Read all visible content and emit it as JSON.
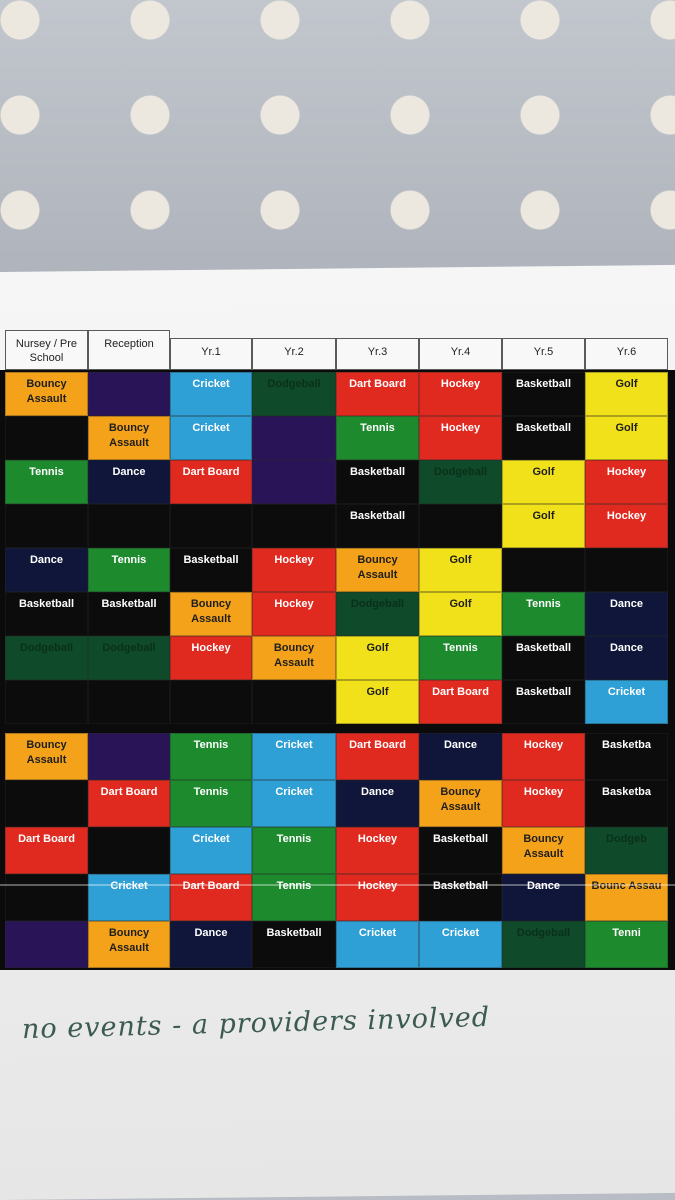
{
  "colors": {
    "orange": "#f4a21a",
    "purple": "#2a1458",
    "blue": "#2fa0d6",
    "darkgreen": "#0f4a2a",
    "red": "#e02a20",
    "black": "#0c0c0c",
    "yellow": "#f1e11a",
    "green": "#1e8a2e",
    "navy": "#10163a"
  },
  "headers": [
    "Nursey / Pre School",
    "Reception",
    "Yr.1",
    "Yr.2",
    "Yr.3",
    "Yr.4",
    "Yr.5",
    "Yr.6"
  ],
  "block1": [
    [
      [
        "Bouncy Assault",
        "orange"
      ],
      [
        "",
        "purple"
      ],
      [
        "Cricket",
        "blue"
      ],
      [
        "Dodgeball",
        "darkgreen"
      ],
      [
        "Dart Board",
        "red"
      ],
      [
        "Hockey",
        "red"
      ],
      [
        "Basketball",
        "black"
      ],
      [
        "Golf",
        "yellow"
      ]
    ],
    [
      [
        "",
        "black"
      ],
      [
        "Bouncy Assault",
        "orange"
      ],
      [
        "Cricket",
        "blue"
      ],
      [
        "",
        "purple"
      ],
      [
        "Tennis",
        "green"
      ],
      [
        "Hockey",
        "red"
      ],
      [
        "Basketball",
        "black"
      ],
      [
        "Golf",
        "yellow"
      ]
    ],
    [
      [
        "Tennis",
        "green"
      ],
      [
        "Dance",
        "navy"
      ],
      [
        "Dart Board",
        "red"
      ],
      [
        "",
        "purple"
      ],
      [
        "Basketball",
        "black"
      ],
      [
        "Dodgeball",
        "darkgreen"
      ],
      [
        "Golf",
        "yellow"
      ],
      [
        "Hockey",
        "red"
      ]
    ],
    [
      [
        "",
        "black"
      ],
      [
        "",
        "black"
      ],
      [
        "",
        "black"
      ],
      [
        "",
        "black"
      ],
      [
        "Basketball",
        "black"
      ],
      [
        "",
        "black"
      ],
      [
        "Golf",
        "yellow"
      ],
      [
        "Hockey",
        "red"
      ]
    ],
    [
      [
        "Dance",
        "navy"
      ],
      [
        "Tennis",
        "green"
      ],
      [
        "Basketball",
        "black"
      ],
      [
        "Hockey",
        "red"
      ],
      [
        "Bouncy Assault",
        "orange"
      ],
      [
        "Golf",
        "yellow"
      ],
      [
        "",
        "black"
      ],
      [
        "",
        "black"
      ]
    ],
    [
      [
        "Basketball",
        "black"
      ],
      [
        "Basketball",
        "black"
      ],
      [
        "Bouncy Assault",
        "orange"
      ],
      [
        "Hockey",
        "red"
      ],
      [
        "Dodgeball",
        "darkgreen"
      ],
      [
        "Golf",
        "yellow"
      ],
      [
        "Tennis",
        "green"
      ],
      [
        "Dance",
        "navy"
      ]
    ],
    [
      [
        "Dodgeball",
        "darkgreen"
      ],
      [
        "Dodgeball",
        "darkgreen"
      ],
      [
        "Hockey",
        "red"
      ],
      [
        "Bouncy Assault",
        "orange"
      ],
      [
        "Golf",
        "yellow"
      ],
      [
        "Tennis",
        "green"
      ],
      [
        "Basketball",
        "black"
      ],
      [
        "Dance",
        "navy"
      ]
    ],
    [
      [
        "",
        "black"
      ],
      [
        "",
        "black"
      ],
      [
        "",
        "black"
      ],
      [
        "",
        "black"
      ],
      [
        "Golf",
        "yellow"
      ],
      [
        "Dart Board",
        "red"
      ],
      [
        "Basketball",
        "black"
      ],
      [
        "Cricket",
        "blue"
      ]
    ]
  ],
  "block2": [
    [
      [
        "Bouncy Assault",
        "orange"
      ],
      [
        "",
        "purple"
      ],
      [
        "Tennis",
        "green"
      ],
      [
        "Cricket",
        "blue"
      ],
      [
        "Dart Board",
        "red"
      ],
      [
        "Dance",
        "navy"
      ],
      [
        "Hockey",
        "red"
      ],
      [
        "Basketba",
        "black"
      ]
    ],
    [
      [
        "",
        "black"
      ],
      [
        "Dart Board",
        "red"
      ],
      [
        "Tennis",
        "green"
      ],
      [
        "Cricket",
        "blue"
      ],
      [
        "Dance",
        "navy"
      ],
      [
        "Bouncy Assault",
        "orange"
      ],
      [
        "Hockey",
        "red"
      ],
      [
        "Basketba",
        "black"
      ]
    ],
    [
      [
        "Dart Board",
        "red"
      ],
      [
        "",
        "black"
      ],
      [
        "Cricket",
        "blue"
      ],
      [
        "Tennis",
        "green"
      ],
      [
        "Hockey",
        "red"
      ],
      [
        "Basketball",
        "black"
      ],
      [
        "Bouncy Assault",
        "orange"
      ],
      [
        "Dodgeb",
        "darkgreen"
      ]
    ],
    [
      [
        "",
        "black"
      ],
      [
        "Cricket",
        "blue"
      ],
      [
        "Dart Board",
        "red"
      ],
      [
        "Tennis",
        "green"
      ],
      [
        "Hockey",
        "red"
      ],
      [
        "Basketball",
        "black"
      ],
      [
        "Dance",
        "navy"
      ],
      [
        "Bounc Assau",
        "orange"
      ]
    ],
    [
      [
        "",
        "purple"
      ],
      [
        "Bouncy Assault",
        "orange"
      ],
      [
        "Dance",
        "navy"
      ],
      [
        "Basketball",
        "black"
      ],
      [
        "Cricket",
        "blue"
      ],
      [
        "Cricket",
        "blue"
      ],
      [
        "Dodgeball",
        "darkgreen"
      ],
      [
        "Tenni",
        "green"
      ]
    ]
  ],
  "handwriting": "no events - a providers involved"
}
